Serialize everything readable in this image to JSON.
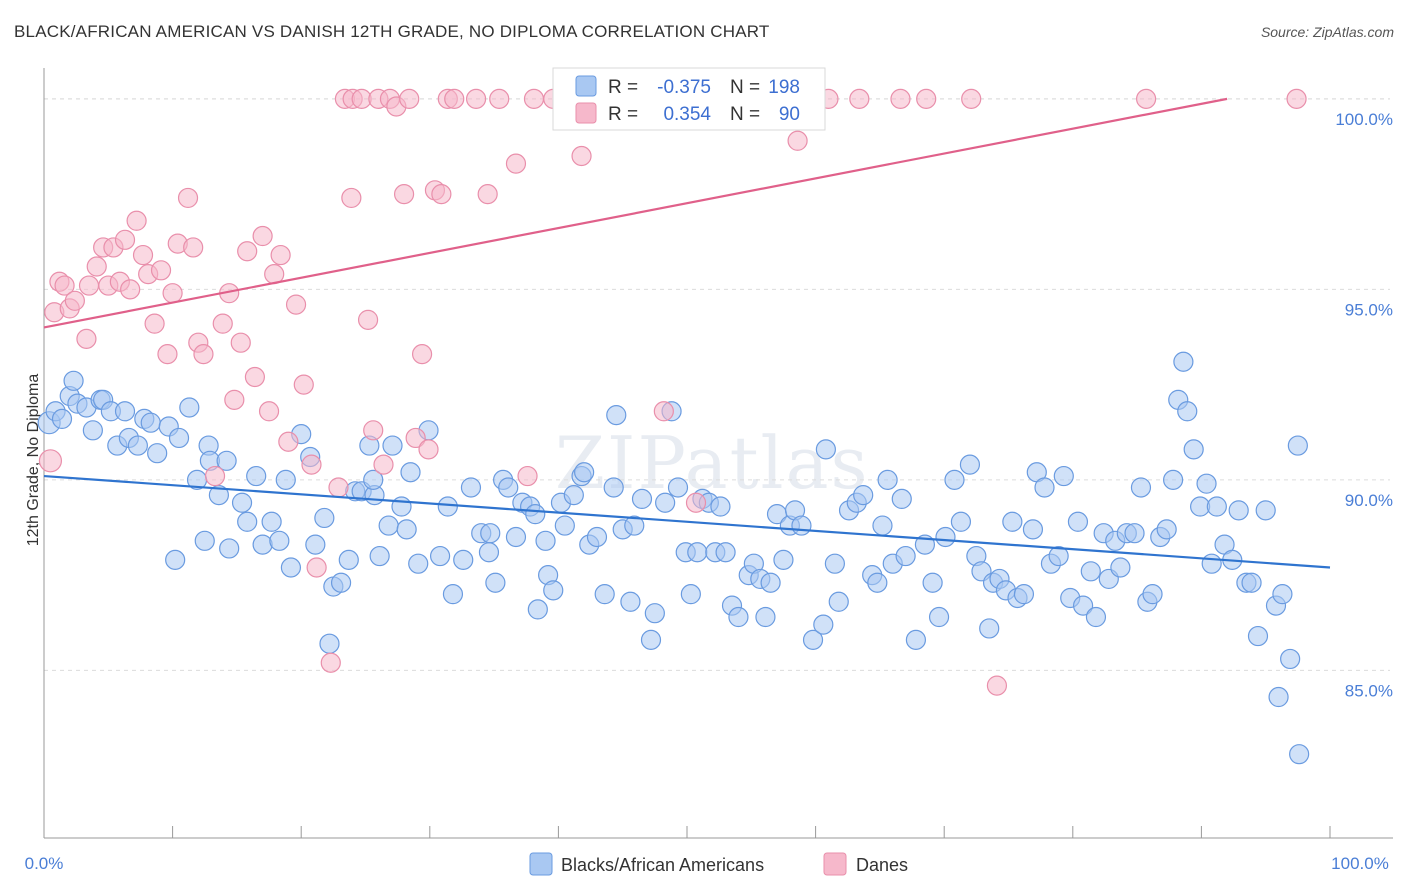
{
  "title": "BLACK/AFRICAN AMERICAN VS DANISH 12TH GRADE, NO DIPLOMA CORRELATION CHART",
  "source": "Source: ZipAtlas.com",
  "watermark": "ZIPatlas",
  "colors": {
    "blue_fill": "#a9c8f2",
    "blue_stroke": "#6a9be0",
    "blue_line": "#2f74cf",
    "pink_fill": "#f6b8cb",
    "pink_stroke": "#e98fab",
    "pink_line": "#e0608a",
    "grid": "#dcdcdc",
    "tick_label": "#4a7ed6"
  },
  "stats": [
    {
      "r_label": "R =",
      "r_value": "-0.375",
      "n_label": "N =",
      "n_value": "198"
    },
    {
      "r_label": "R =",
      "r_value": "0.354",
      "n_label": "N =",
      "n_value": "90"
    }
  ],
  "chart_data": {
    "type": "scatter",
    "title": "BLACK/AFRICAN AMERICAN VS DANISH 12TH GRADE, NO DIPLOMA CORRELATION CHART",
    "xlabel": "",
    "ylabel": "12th Grade, No Diploma",
    "xlim": [
      0,
      100
    ],
    "ylim": [
      80.6,
      100.6
    ],
    "x_tick_labels": [
      "0.0%",
      "100.0%"
    ],
    "y_ticks": [
      85,
      90,
      95,
      100
    ],
    "y_tick_labels": [
      "85.0%",
      "90.0%",
      "95.0%",
      "100.0%"
    ],
    "grid": true,
    "legend_position": "bottom-center",
    "series": [
      {
        "name": "Blacks/African Americans",
        "color": "#a9c8f2",
        "trend": {
          "x": [
            0,
            100
          ],
          "y": [
            90.1,
            87.7
          ]
        },
        "points": [
          [
            0.4,
            91.5
          ],
          [
            0.9,
            91.8
          ],
          [
            1.4,
            91.6
          ],
          [
            2.0,
            92.2
          ],
          [
            2.3,
            92.6
          ],
          [
            2.6,
            92.0
          ],
          [
            3.3,
            91.9
          ],
          [
            3.8,
            91.3
          ],
          [
            4.4,
            92.1
          ],
          [
            4.6,
            92.1
          ],
          [
            5.2,
            91.8
          ],
          [
            5.7,
            90.9
          ],
          [
            6.3,
            91.8
          ],
          [
            6.6,
            91.1
          ],
          [
            7.3,
            90.9
          ],
          [
            7.8,
            91.6
          ],
          [
            8.3,
            91.5
          ],
          [
            8.8,
            90.7
          ],
          [
            9.7,
            91.4
          ],
          [
            10.5,
            91.1
          ],
          [
            11.3,
            91.9
          ],
          [
            12.8,
            90.9
          ],
          [
            12.9,
            90.5
          ],
          [
            13.6,
            89.6
          ],
          [
            14.2,
            90.5
          ],
          [
            10.2,
            87.9
          ],
          [
            11.9,
            90.0
          ],
          [
            12.5,
            88.4
          ],
          [
            14.4,
            88.2
          ],
          [
            15.4,
            89.4
          ],
          [
            15.8,
            88.9
          ],
          [
            16.5,
            90.1
          ],
          [
            17.0,
            88.3
          ],
          [
            17.7,
            88.9
          ],
          [
            18.3,
            88.4
          ],
          [
            18.8,
            90.0
          ],
          [
            19.2,
            87.7
          ],
          [
            20.0,
            91.2
          ],
          [
            20.7,
            90.6
          ],
          [
            21.1,
            88.3
          ],
          [
            21.8,
            89.0
          ],
          [
            22.5,
            87.2
          ],
          [
            22.2,
            85.7
          ],
          [
            23.1,
            87.3
          ],
          [
            23.7,
            87.9
          ],
          [
            24.2,
            89.7
          ],
          [
            24.7,
            89.7
          ],
          [
            25.3,
            90.9
          ],
          [
            25.7,
            89.6
          ],
          [
            25.6,
            90.0
          ],
          [
            26.1,
            88.0
          ],
          [
            26.8,
            88.8
          ],
          [
            27.1,
            90.9
          ],
          [
            27.8,
            89.3
          ],
          [
            28.2,
            88.7
          ],
          [
            28.5,
            90.2
          ],
          [
            29.1,
            87.8
          ],
          [
            29.9,
            91.3
          ],
          [
            30.8,
            88.0
          ],
          [
            31.4,
            89.3
          ],
          [
            31.8,
            87.0
          ],
          [
            32.6,
            87.9
          ],
          [
            33.2,
            89.8
          ],
          [
            34.0,
            88.6
          ],
          [
            34.7,
            88.6
          ],
          [
            34.6,
            88.1
          ],
          [
            35.1,
            87.3
          ],
          [
            35.7,
            90.0
          ],
          [
            36.1,
            89.8
          ],
          [
            36.7,
            88.5
          ],
          [
            37.2,
            89.4
          ],
          [
            37.8,
            89.3
          ],
          [
            38.2,
            89.1
          ],
          [
            38.4,
            86.6
          ],
          [
            39.0,
            88.4
          ],
          [
            39.2,
            87.5
          ],
          [
            39.6,
            87.1
          ],
          [
            40.2,
            89.4
          ],
          [
            40.5,
            88.8
          ],
          [
            41.2,
            89.6
          ],
          [
            41.8,
            90.1
          ],
          [
            42.0,
            90.2
          ],
          [
            42.4,
            88.3
          ],
          [
            43.0,
            88.5
          ],
          [
            43.6,
            87.0
          ],
          [
            44.3,
            89.8
          ],
          [
            44.5,
            91.7
          ],
          [
            45.0,
            88.7
          ],
          [
            45.6,
            86.8
          ],
          [
            45.9,
            88.8
          ],
          [
            46.5,
            89.5
          ],
          [
            47.2,
            85.8
          ],
          [
            47.5,
            86.5
          ],
          [
            48.3,
            89.4
          ],
          [
            48.8,
            91.8
          ],
          [
            49.3,
            89.8
          ],
          [
            49.9,
            88.1
          ],
          [
            50.3,
            87.0
          ],
          [
            50.8,
            88.1
          ],
          [
            51.2,
            89.5
          ],
          [
            51.7,
            89.4
          ],
          [
            52.2,
            88.1
          ],
          [
            52.6,
            89.3
          ],
          [
            53.5,
            86.7
          ],
          [
            53.0,
            88.1
          ],
          [
            54.0,
            86.4
          ],
          [
            54.8,
            87.5
          ],
          [
            55.2,
            87.8
          ],
          [
            55.7,
            87.4
          ],
          [
            56.1,
            86.4
          ],
          [
            56.5,
            87.3
          ],
          [
            57.0,
            89.1
          ],
          [
            57.5,
            87.9
          ],
          [
            58.0,
            88.8
          ],
          [
            58.4,
            89.2
          ],
          [
            58.9,
            88.8
          ],
          [
            59.8,
            85.8
          ],
          [
            60.6,
            86.2
          ],
          [
            60.8,
            90.8
          ],
          [
            61.5,
            87.8
          ],
          [
            61.8,
            86.8
          ],
          [
            62.6,
            89.2
          ],
          [
            63.2,
            89.4
          ],
          [
            63.7,
            89.6
          ],
          [
            64.4,
            87.5
          ],
          [
            64.8,
            87.3
          ],
          [
            65.2,
            88.8
          ],
          [
            65.6,
            90.0
          ],
          [
            66.0,
            87.8
          ],
          [
            66.7,
            89.5
          ],
          [
            67.0,
            88.0
          ],
          [
            67.8,
            85.8
          ],
          [
            68.5,
            88.3
          ],
          [
            69.1,
            87.3
          ],
          [
            69.6,
            86.4
          ],
          [
            70.1,
            88.5
          ],
          [
            70.8,
            90.0
          ],
          [
            71.3,
            88.9
          ],
          [
            72.0,
            90.4
          ],
          [
            72.5,
            88.0
          ],
          [
            72.9,
            87.6
          ],
          [
            73.5,
            86.1
          ],
          [
            73.8,
            87.3
          ],
          [
            74.3,
            87.4
          ],
          [
            74.8,
            87.1
          ],
          [
            75.3,
            88.9
          ],
          [
            75.7,
            86.9
          ],
          [
            76.2,
            87.0
          ],
          [
            76.9,
            88.7
          ],
          [
            77.2,
            90.2
          ],
          [
            77.8,
            89.8
          ],
          [
            78.3,
            87.8
          ],
          [
            78.9,
            88.0
          ],
          [
            79.3,
            90.1
          ],
          [
            79.8,
            86.9
          ],
          [
            80.4,
            88.9
          ],
          [
            80.8,
            86.7
          ],
          [
            81.4,
            87.6
          ],
          [
            81.8,
            86.4
          ],
          [
            82.4,
            88.6
          ],
          [
            82.8,
            87.4
          ],
          [
            83.3,
            88.4
          ],
          [
            83.7,
            87.7
          ],
          [
            84.2,
            88.6
          ],
          [
            84.8,
            88.6
          ],
          [
            85.3,
            89.8
          ],
          [
            85.8,
            86.8
          ],
          [
            86.2,
            87.0
          ],
          [
            86.8,
            88.5
          ],
          [
            87.3,
            88.7
          ],
          [
            87.8,
            90.0
          ],
          [
            88.2,
            92.1
          ],
          [
            88.6,
            93.1
          ],
          [
            88.9,
            91.8
          ],
          [
            89.4,
            90.8
          ],
          [
            89.9,
            89.3
          ],
          [
            90.4,
            89.9
          ],
          [
            90.8,
            87.8
          ],
          [
            91.2,
            89.3
          ],
          [
            91.8,
            88.3
          ],
          [
            92.4,
            87.9
          ],
          [
            92.9,
            89.2
          ],
          [
            93.5,
            87.3
          ],
          [
            93.9,
            87.3
          ],
          [
            94.4,
            85.9
          ],
          [
            95.0,
            89.2
          ],
          [
            95.8,
            86.7
          ],
          [
            96.3,
            87.0
          ],
          [
            96.9,
            85.3
          ],
          [
            97.5,
            90.9
          ],
          [
            96.0,
            84.3
          ],
          [
            97.6,
            82.8
          ]
        ]
      },
      {
        "name": "Danes",
        "color": "#f6b8cb",
        "trend": {
          "x": [
            0,
            92
          ],
          "y": [
            94.0,
            100.0
          ]
        },
        "points": [
          [
            0.5,
            90.5
          ],
          [
            0.8,
            94.4
          ],
          [
            1.2,
            95.2
          ],
          [
            1.6,
            95.1
          ],
          [
            2.0,
            94.5
          ],
          [
            2.4,
            94.7
          ],
          [
            3.3,
            93.7
          ],
          [
            3.5,
            95.1
          ],
          [
            4.1,
            95.6
          ],
          [
            4.6,
            96.1
          ],
          [
            5.0,
            95.1
          ],
          [
            5.4,
            96.1
          ],
          [
            5.9,
            95.2
          ],
          [
            6.3,
            96.3
          ],
          [
            6.7,
            95.0
          ],
          [
            7.2,
            96.8
          ],
          [
            7.7,
            95.9
          ],
          [
            8.1,
            95.4
          ],
          [
            8.6,
            94.1
          ],
          [
            9.1,
            95.5
          ],
          [
            9.6,
            93.3
          ],
          [
            10.0,
            94.9
          ],
          [
            10.4,
            96.2
          ],
          [
            11.2,
            97.4
          ],
          [
            11.6,
            96.1
          ],
          [
            12.0,
            93.6
          ],
          [
            12.4,
            93.3
          ],
          [
            13.3,
            90.1
          ],
          [
            13.9,
            94.1
          ],
          [
            14.4,
            94.9
          ],
          [
            14.8,
            92.1
          ],
          [
            15.3,
            93.6
          ],
          [
            15.8,
            96.0
          ],
          [
            16.4,
            92.7
          ],
          [
            17.0,
            96.4
          ],
          [
            17.5,
            91.8
          ],
          [
            17.9,
            95.4
          ],
          [
            18.4,
            95.9
          ],
          [
            19.0,
            91.0
          ],
          [
            19.6,
            94.6
          ],
          [
            20.2,
            92.5
          ],
          [
            20.8,
            90.4
          ],
          [
            21.2,
            87.7
          ],
          [
            22.3,
            85.2
          ],
          [
            22.9,
            89.8
          ],
          [
            23.4,
            100.0
          ],
          [
            23.9,
            97.4
          ],
          [
            24.0,
            100.0
          ],
          [
            24.7,
            100.0
          ],
          [
            25.2,
            94.2
          ],
          [
            25.6,
            91.3
          ],
          [
            26.0,
            100.0
          ],
          [
            26.4,
            90.4
          ],
          [
            26.9,
            100.0
          ],
          [
            27.4,
            99.8
          ],
          [
            28.0,
            97.5
          ],
          [
            28.4,
            100.0
          ],
          [
            28.9,
            91.1
          ],
          [
            29.4,
            93.3
          ],
          [
            29.9,
            90.8
          ],
          [
            30.4,
            97.6
          ],
          [
            30.9,
            97.5
          ],
          [
            31.4,
            100.0
          ],
          [
            31.9,
            100.0
          ],
          [
            33.6,
            100.0
          ],
          [
            34.5,
            97.5
          ],
          [
            35.4,
            100.0
          ],
          [
            36.7,
            98.3
          ],
          [
            37.6,
            90.1
          ],
          [
            38.1,
            100.0
          ],
          [
            39.6,
            100.0
          ],
          [
            40.6,
            100.0
          ],
          [
            41.8,
            98.5
          ],
          [
            42.6,
            100.0
          ],
          [
            43.3,
            100.0
          ],
          [
            47.5,
            100.0
          ],
          [
            48.2,
            91.8
          ],
          [
            49.4,
            100.0
          ],
          [
            50.7,
            89.4
          ],
          [
            53.9,
            100.0
          ],
          [
            54.7,
            100.0
          ],
          [
            58.6,
            98.9
          ],
          [
            61.0,
            100.0
          ],
          [
            63.4,
            100.0
          ],
          [
            66.6,
            100.0
          ],
          [
            68.6,
            100.0
          ],
          [
            72.1,
            100.0
          ],
          [
            74.1,
            84.6
          ],
          [
            85.7,
            100.0
          ],
          [
            97.4,
            100.0
          ]
        ]
      }
    ]
  },
  "legend": {
    "items": [
      {
        "label": "Blacks/African Americans"
      },
      {
        "label": "Danes"
      }
    ]
  }
}
